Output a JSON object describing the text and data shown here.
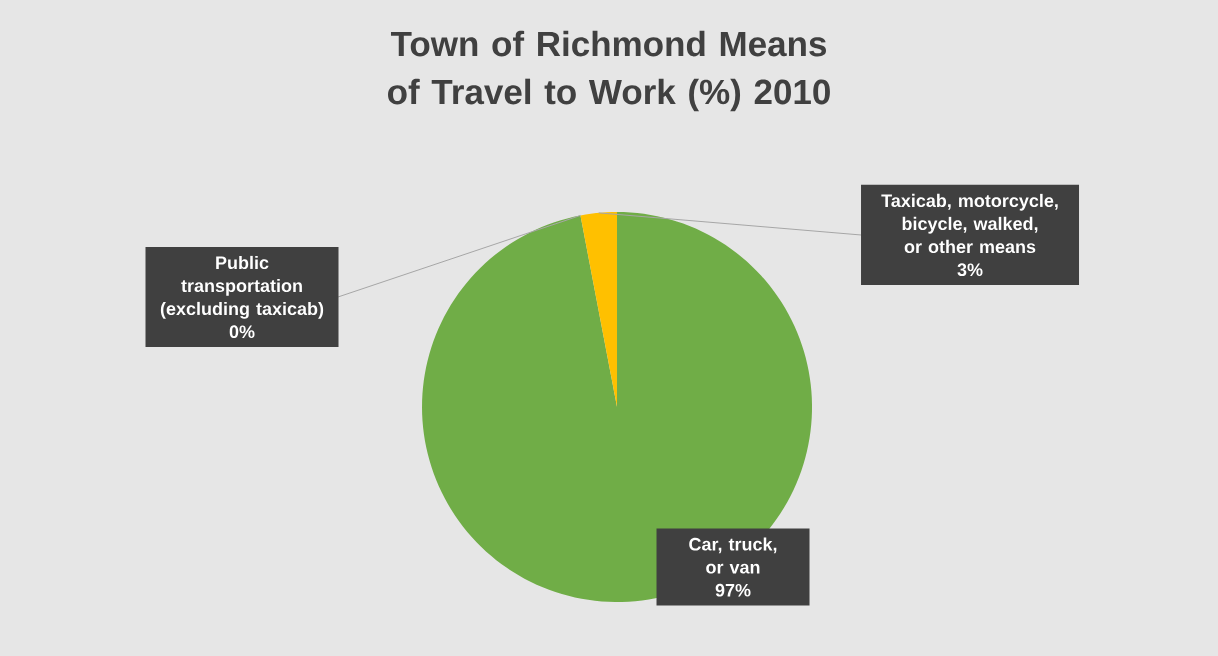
{
  "chart_data": {
    "type": "pie",
    "title": "Town of Richmond Means of Travel to Work (%) 2010",
    "categories": [
      "Car, truck, or van",
      "Public transportation (excluding taxicab)",
      "Taxicab, motorcycle, bicycle, walked, or other means"
    ],
    "values": [
      97,
      0,
      3
    ],
    "colors": [
      "#70ad47",
      "#5b9bd5",
      "#ffc000"
    ],
    "value_labels": [
      "97%",
      "0%",
      "3%"
    ]
  }
}
